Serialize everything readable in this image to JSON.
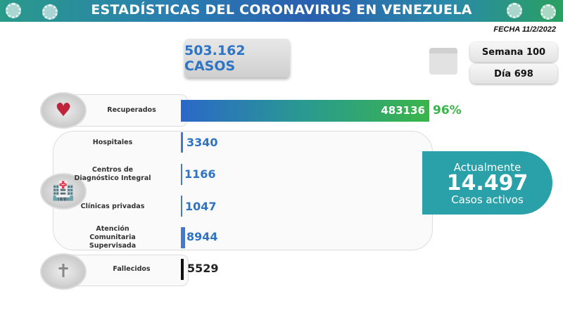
{
  "header": {
    "title": "ESTADÍSTICAS DEL CORONAVIRUS EN VENEZUELA",
    "date": "FECHA 11/2/2022"
  },
  "total_cases": "503.162 CASOS",
  "week": "Semana 100",
  "day": "Día 698",
  "recovered": {
    "label": "Recuperados",
    "value": "483136",
    "percent": "96%"
  },
  "active_breakdown": [
    {
      "label_lines": [
        "Hospitales"
      ],
      "value": "3340"
    },
    {
      "label_lines": [
        "Centros de",
        "Diagnóstico Integral"
      ],
      "value": "1166"
    },
    {
      "label_lines": [
        "Clínicas privadas"
      ],
      "value": "1047"
    },
    {
      "label_lines": [
        "Atención",
        "Comunitaria",
        "Supervisada"
      ],
      "value": "8944"
    }
  ],
  "active": {
    "prefix": "Actualmente",
    "value": "14.497",
    "suffix": "Casos activos"
  },
  "deaths": {
    "label": "Fallecidos",
    "value": "5529"
  },
  "colors": {
    "accent": "#2e74c4",
    "green": "#3ab54a",
    "teal": "#2aa0a8"
  },
  "icons": [
    "virus-icon",
    "calendar-icon",
    "heart-pulse-icon",
    "hospital-icon",
    "tombstone-icon"
  ]
}
